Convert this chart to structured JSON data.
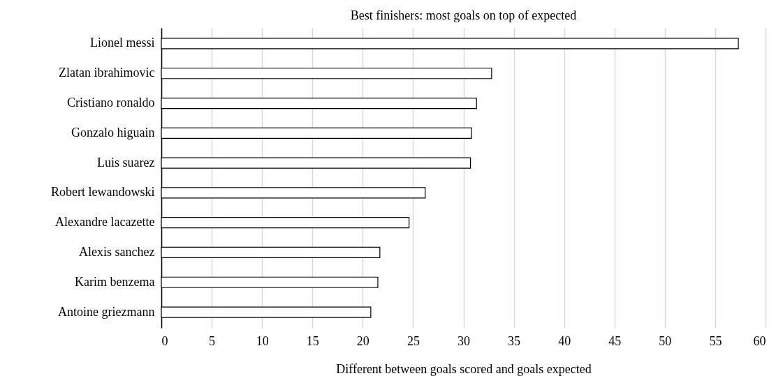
{
  "chart_data": {
    "type": "bar",
    "orientation": "horizontal",
    "title": "Best finishers: most goals on top of expected",
    "xlabel": "Different between goals scored and goals expected",
    "categories": [
      "Lionel messi",
      "Zlatan ibrahimovic",
      "Cristiano ronaldo",
      "Gonzalo higuain",
      "Luis suarez",
      "Robert lewandowski",
      "Alexandre lacazette",
      "Alexis sanchez",
      "Karim benzema",
      "Antoine griezmann"
    ],
    "values": [
      57.3,
      32.8,
      31.3,
      30.8,
      30.7,
      26.2,
      24.6,
      21.7,
      21.5,
      20.8
    ],
    "color": "#ffffff",
    "xlim": [
      0,
      60
    ],
    "xticks": [
      0,
      5,
      10,
      15,
      20,
      25,
      30,
      35,
      40,
      45,
      50,
      55,
      60
    ],
    "grid": "x"
  }
}
